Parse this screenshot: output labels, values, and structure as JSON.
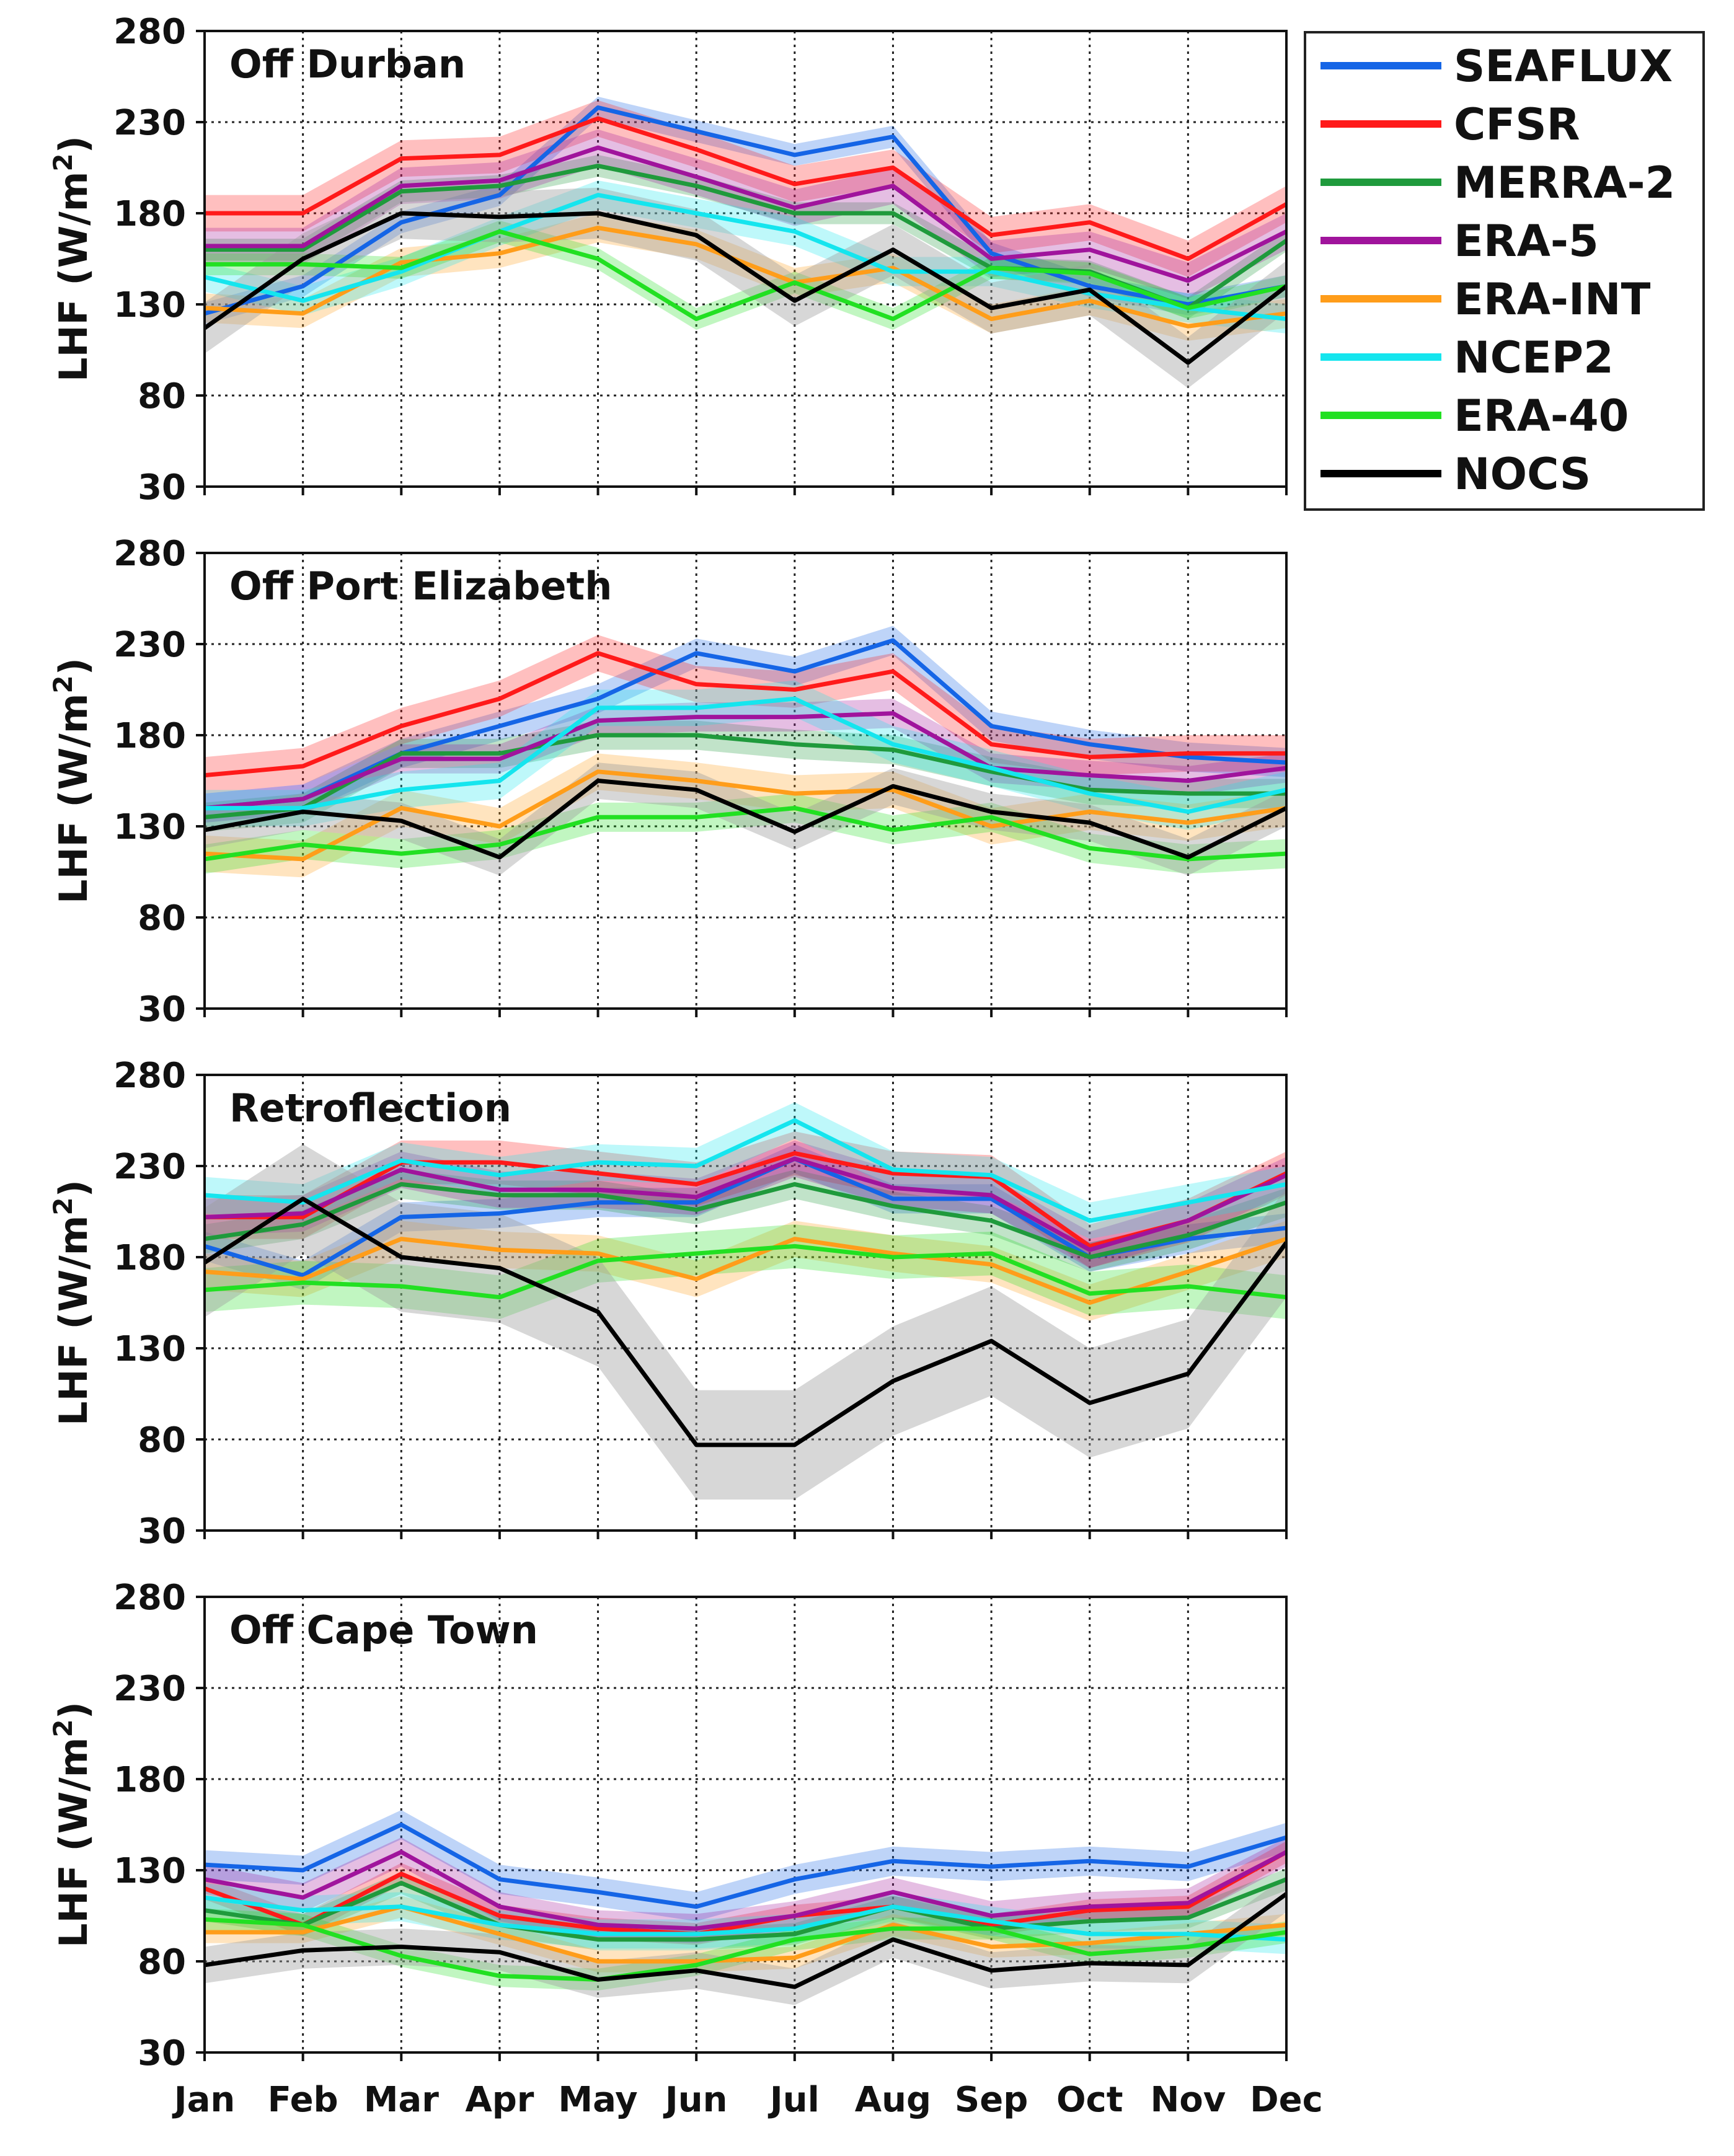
{
  "figure": {
    "months": [
      "Jan",
      "Feb",
      "Mar",
      "Apr",
      "May",
      "Jun",
      "Jul",
      "Aug",
      "Sep",
      "Oct",
      "Nov",
      "Dec"
    ],
    "y_ticks": [
      "30",
      "80",
      "130",
      "180",
      "230",
      "280"
    ],
    "ylabel": "LHF (W/m",
    "ylabel_sup": "2",
    "ylabel_end": ")"
  },
  "legend": [
    {
      "name": "SEAFLUX",
      "color": "#1565e6"
    },
    {
      "name": "CFSR",
      "color": "#ff1a1a"
    },
    {
      "name": "MERRA-2",
      "color": "#1f9a3c"
    },
    {
      "name": "ERA-5",
      "color": "#a0149c"
    },
    {
      "name": "ERA-INT",
      "color": "#ff9d1a"
    },
    {
      "name": "NCEP2",
      "color": "#15e5ee"
    },
    {
      "name": "ERA-40",
      "color": "#22e022"
    },
    {
      "name": "NOCS",
      "color": "#000000"
    }
  ],
  "chart_data": [
    {
      "type": "line",
      "title": "Off Durban",
      "xlabel": "",
      "ylabel": "LHF (W/m2)",
      "ylim": [
        30,
        280
      ],
      "categories": [
        "Jan",
        "Feb",
        "Mar",
        "Apr",
        "May",
        "Jun",
        "Jul",
        "Aug",
        "Sep",
        "Oct",
        "Nov",
        "Dec"
      ],
      "series": [
        {
          "name": "SEAFLUX",
          "values": [
            125,
            140,
            175,
            190,
            238,
            225,
            212,
            222,
            158,
            140,
            130,
            140
          ],
          "spread": 6
        },
        {
          "name": "CFSR",
          "values": [
            180,
            180,
            210,
            212,
            232,
            215,
            196,
            205,
            168,
            175,
            155,
            185
          ],
          "spread": 10
        },
        {
          "name": "MERRA-2",
          "values": [
            160,
            160,
            192,
            195,
            206,
            195,
            180,
            180,
            150,
            148,
            128,
            165
          ],
          "spread": 6
        },
        {
          "name": "ERA-5",
          "values": [
            162,
            162,
            195,
            198,
            216,
            200,
            183,
            195,
            155,
            160,
            143,
            170
          ],
          "spread": 10
        },
        {
          "name": "ERA-INT",
          "values": [
            128,
            125,
            153,
            158,
            172,
            163,
            142,
            150,
            122,
            132,
            118,
            125
          ],
          "spread": 8
        },
        {
          "name": "NCEP2",
          "values": [
            145,
            132,
            148,
            170,
            190,
            180,
            170,
            148,
            148,
            136,
            128,
            122
          ],
          "spread": 8
        },
        {
          "name": "ERA-40",
          "values": [
            152,
            152,
            150,
            170,
            155,
            122,
            142,
            122,
            150,
            147,
            128,
            140
          ],
          "spread": 6
        },
        {
          "name": "NOCS",
          "values": [
            117,
            155,
            180,
            178,
            180,
            168,
            132,
            160,
            128,
            138,
            98,
            140
          ],
          "spread": 14
        }
      ]
    },
    {
      "type": "line",
      "title": "Off Port Elizabeth",
      "xlabel": "",
      "ylabel": "LHF (W/m2)",
      "ylim": [
        30,
        280
      ],
      "categories": [
        "Jan",
        "Feb",
        "Mar",
        "Apr",
        "May",
        "Jun",
        "Jul",
        "Aug",
        "Sep",
        "Oct",
        "Nov",
        "Dec"
      ],
      "series": [
        {
          "name": "SEAFLUX",
          "values": [
            140,
            145,
            170,
            185,
            200,
            225,
            215,
            232,
            185,
            175,
            168,
            165
          ],
          "spread": 8
        },
        {
          "name": "CFSR",
          "values": [
            158,
            163,
            185,
            200,
            225,
            208,
            205,
            215,
            175,
            168,
            170,
            170
          ],
          "spread": 10
        },
        {
          "name": "MERRA-2",
          "values": [
            135,
            140,
            170,
            170,
            180,
            180,
            175,
            172,
            160,
            150,
            148,
            148
          ],
          "spread": 8
        },
        {
          "name": "ERA-5",
          "values": [
            140,
            145,
            167,
            167,
            188,
            190,
            190,
            192,
            162,
            158,
            155,
            162
          ],
          "spread": 8
        },
        {
          "name": "ERA-INT",
          "values": [
            115,
            112,
            140,
            130,
            160,
            155,
            148,
            150,
            130,
            138,
            132,
            140
          ],
          "spread": 10
        },
        {
          "name": "NCEP2",
          "values": [
            140,
            140,
            150,
            155,
            195,
            195,
            200,
            175,
            162,
            148,
            138,
            150
          ],
          "spread": 10
        },
        {
          "name": "ERA-40",
          "values": [
            112,
            120,
            115,
            120,
            135,
            135,
            140,
            128,
            135,
            118,
            112,
            115
          ],
          "spread": 8
        },
        {
          "name": "NOCS",
          "values": [
            128,
            138,
            133,
            113,
            155,
            150,
            127,
            152,
            138,
            132,
            113,
            140
          ],
          "spread": 10
        }
      ]
    },
    {
      "type": "line",
      "title": "Retroflection",
      "xlabel": "",
      "ylabel": "LHF (W/m2)",
      "ylim": [
        30,
        280
      ],
      "categories": [
        "Jan",
        "Feb",
        "Mar",
        "Apr",
        "May",
        "Jun",
        "Jul",
        "Aug",
        "Sep",
        "Oct",
        "Nov",
        "Dec"
      ],
      "series": [
        {
          "name": "SEAFLUX",
          "values": [
            186,
            170,
            202,
            204,
            210,
            210,
            234,
            212,
            212,
            180,
            190,
            196
          ],
          "spread": 8
        },
        {
          "name": "CFSR",
          "values": [
            202,
            202,
            232,
            232,
            226,
            220,
            237,
            226,
            224,
            186,
            200,
            226
          ],
          "spread": 12
        },
        {
          "name": "MERRA-2",
          "values": [
            190,
            198,
            220,
            214,
            214,
            206,
            220,
            208,
            200,
            180,
            192,
            210
          ],
          "spread": 8
        },
        {
          "name": "ERA-5",
          "values": [
            202,
            204,
            228,
            217,
            217,
            213,
            234,
            218,
            214,
            184,
            200,
            225
          ],
          "spread": 10
        },
        {
          "name": "ERA-INT",
          "values": [
            172,
            168,
            190,
            184,
            182,
            168,
            190,
            182,
            176,
            155,
            172,
            190
          ],
          "spread": 10
        },
        {
          "name": "NCEP2",
          "values": [
            214,
            210,
            233,
            225,
            232,
            230,
            255,
            228,
            225,
            200,
            210,
            220
          ],
          "spread": 10
        },
        {
          "name": "ERA-40",
          "values": [
            162,
            166,
            164,
            158,
            178,
            182,
            186,
            180,
            182,
            160,
            164,
            158
          ],
          "spread": 12
        },
        {
          "name": "NOCS",
          "values": [
            177,
            212,
            180,
            174,
            150,
            77,
            77,
            112,
            134,
            100,
            116,
            188
          ],
          "spread": 30
        }
      ]
    },
    {
      "type": "line",
      "title": "Off Cape Town",
      "xlabel": "",
      "ylabel": "LHF (W/m2)",
      "ylim": [
        30,
        280
      ],
      "categories": [
        "Jan",
        "Feb",
        "Mar",
        "Apr",
        "May",
        "Jun",
        "Jul",
        "Aug",
        "Sep",
        "Oct",
        "Nov",
        "Dec"
      ],
      "series": [
        {
          "name": "SEAFLUX",
          "values": [
            133,
            130,
            155,
            125,
            118,
            110,
            125,
            135,
            132,
            135,
            132,
            148
          ],
          "spread": 8
        },
        {
          "name": "CFSR",
          "values": [
            120,
            100,
            128,
            105,
            98,
            95,
            105,
            110,
            100,
            108,
            110,
            140
          ],
          "spread": 6
        },
        {
          "name": "MERRA-2",
          "values": [
            108,
            100,
            123,
            100,
            92,
            92,
            95,
            110,
            98,
            102,
            104,
            125
          ],
          "spread": 6
        },
        {
          "name": "ERA-5",
          "values": [
            125,
            115,
            140,
            110,
            100,
            98,
            105,
            118,
            105,
            110,
            112,
            140
          ],
          "spread": 8
        },
        {
          "name": "ERA-INT",
          "values": [
            96,
            96,
            110,
            95,
            80,
            80,
            82,
            100,
            88,
            90,
            95,
            100
          ],
          "spread": 6
        },
        {
          "name": "NCEP2",
          "values": [
            115,
            108,
            110,
            100,
            95,
            95,
            98,
            110,
            102,
            95,
            95,
            92
          ],
          "spread": 8
        },
        {
          "name": "ERA-40",
          "values": [
            103,
            100,
            83,
            72,
            70,
            78,
            92,
            98,
            98,
            84,
            88,
            96
          ],
          "spread": 6
        },
        {
          "name": "NOCS",
          "values": [
            78,
            86,
            88,
            85,
            70,
            75,
            66,
            92,
            75,
            79,
            78,
            117
          ],
          "spread": 10
        }
      ]
    }
  ]
}
